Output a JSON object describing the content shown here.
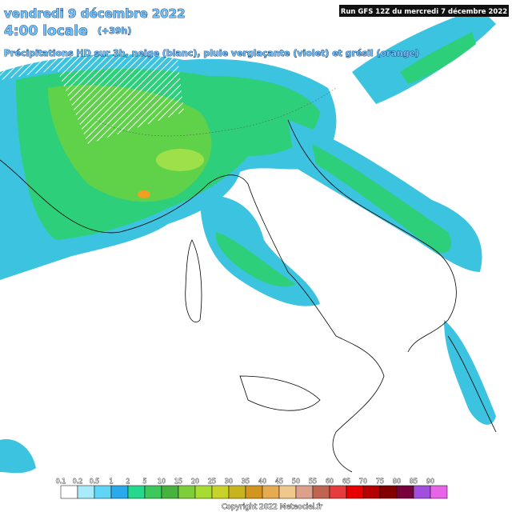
{
  "header": {
    "date": "vendredi 9 décembre 2022",
    "time": "4:00 locale",
    "offset": "(+39h)",
    "subtitle": "Précipitations HD sur 3h, neige (blanc), pluie verglaçante (violet) et grésil (orange)",
    "run": "Run GFS 12Z du mercredi 7 décembre 2022"
  },
  "legend": {
    "labels": [
      "0.1",
      "0.2",
      "0.5",
      "1",
      "2",
      "5",
      "10",
      "15",
      "20",
      "25",
      "30",
      "35",
      "40",
      "45",
      "50",
      "55",
      "60",
      "65",
      "70",
      "75",
      "80",
      "85",
      "90"
    ]
  },
  "footer": {
    "copyright": "Copyright 2022 Meteociel.fr"
  }
}
